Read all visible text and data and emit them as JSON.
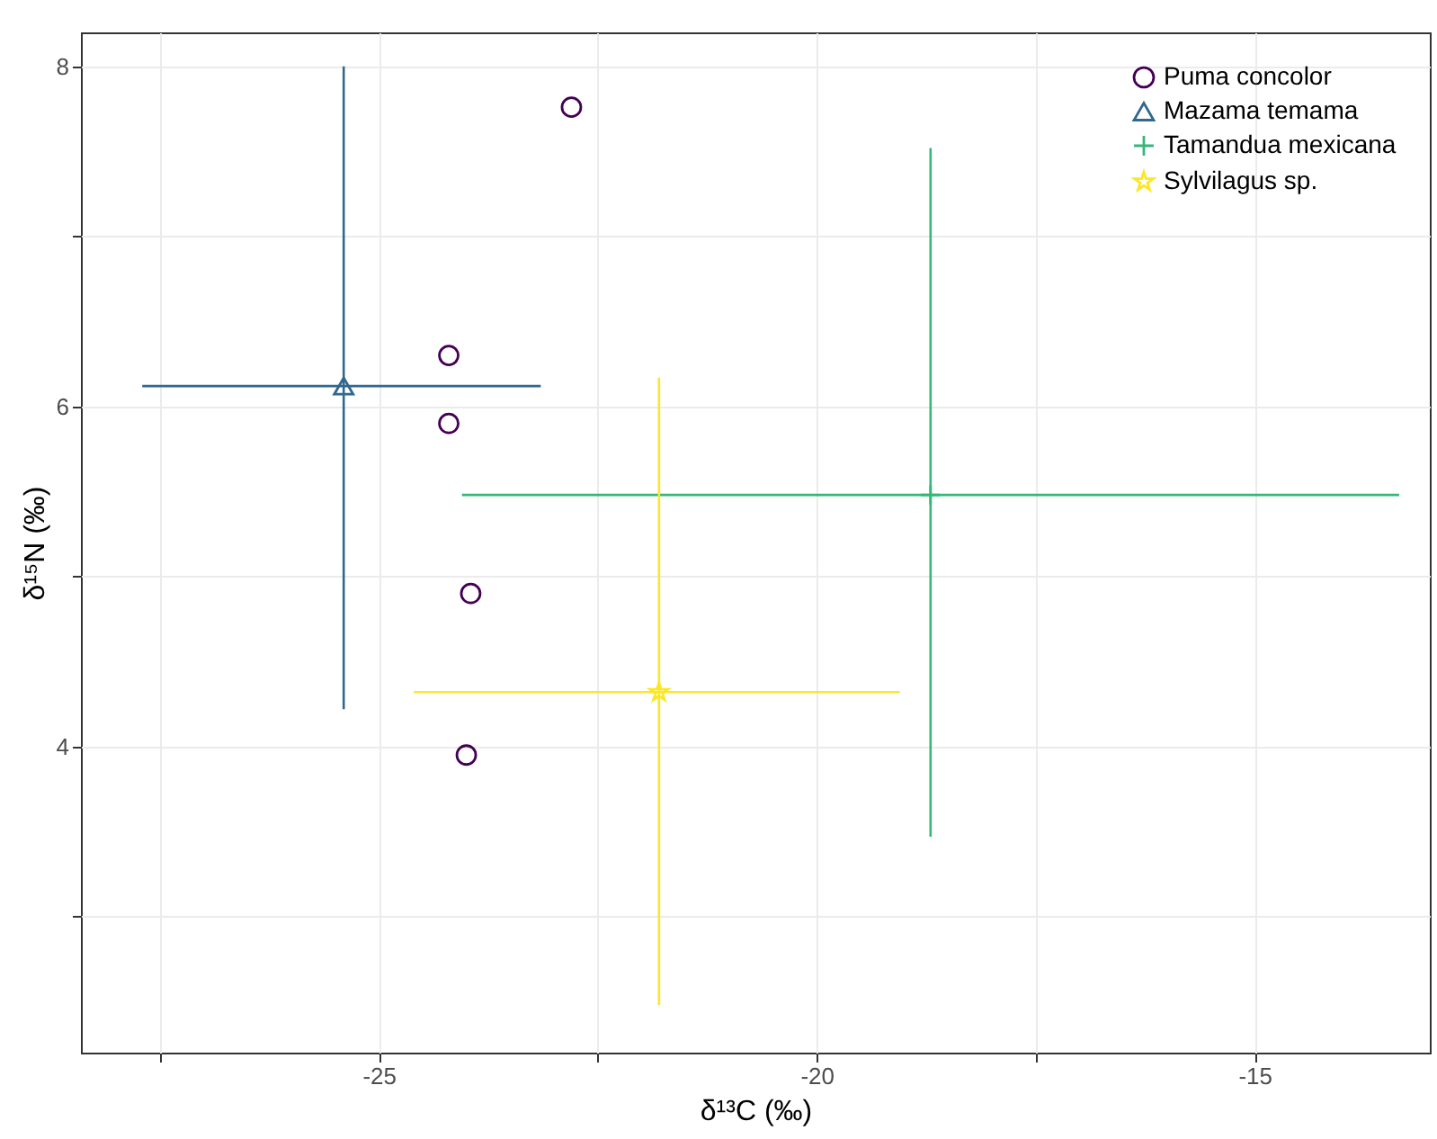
{
  "chart_data": {
    "type": "scatter",
    "xlabel": "δ¹³C (‰)",
    "ylabel": "δ¹⁵N (‰)",
    "xlim": [
      -28.4,
      -13
    ],
    "ylim": [
      2.2,
      8.2
    ],
    "xticks": [
      {
        "value": -27.5,
        "label": null
      },
      -25,
      {
        "value": -22.5,
        "label": null
      },
      -20,
      {
        "value": -17.5,
        "label": null
      },
      -15
    ],
    "yticks": [
      {
        "value": 3,
        "label": null
      },
      4,
      {
        "value": 5,
        "label": null
      },
      6,
      {
        "value": 7,
        "label": null
      },
      8
    ],
    "grid": true,
    "legend": "top right",
    "series": [
      {
        "name": "Puma concolor",
        "color": "#440154",
        "marker": "circle",
        "x": [
          -22.8,
          -24.2,
          -24.2,
          -23.95,
          -24.0
        ],
        "values": [
          7.76,
          6.3,
          5.9,
          4.9,
          3.95
        ]
      },
      {
        "name": "Mazama temama",
        "color": "#31688e",
        "marker": "triangle",
        "x": [
          -25.4
        ],
        "values": [
          6.12
        ],
        "errors": [
          [
            4.22,
            8.0
          ]
        ],
        "xerrors": [
          [
            -27.7,
            -23.15
          ]
        ]
      },
      {
        "name": "Tamandua mexicana",
        "color": "#35b779",
        "marker": "cross",
        "x": [
          -18.7
        ],
        "values": [
          5.48
        ],
        "errors": [
          [
            3.47,
            7.52
          ]
        ],
        "xerrors": [
          [
            -24.05,
            -13.35
          ]
        ]
      },
      {
        "name": "Sylvilagus sp.",
        "color": "#fde725",
        "marker": "star",
        "x": [
          -21.8
        ],
        "values": [
          4.32
        ],
        "errors": [
          [
            2.48,
            6.17
          ]
        ],
        "xerrors": [
          [
            -24.6,
            -19.05
          ]
        ]
      }
    ]
  }
}
